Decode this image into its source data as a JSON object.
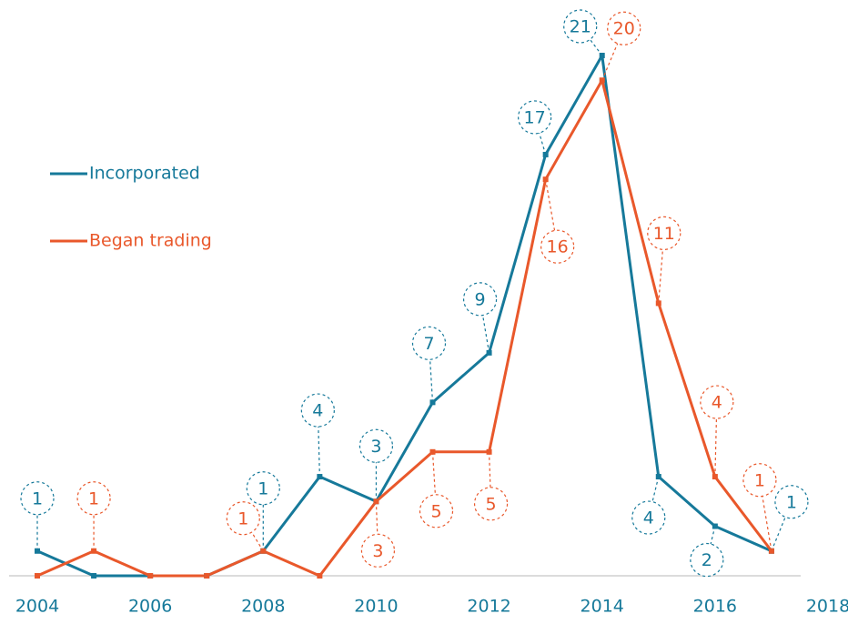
{
  "chart_data": {
    "type": "line",
    "x": [
      2004,
      2005,
      2006,
      2007,
      2008,
      2009,
      2010,
      2011,
      2012,
      2013,
      2014,
      2015,
      2016,
      2017
    ],
    "series": [
      {
        "name": "Incorporated",
        "color": "#16799a",
        "values": [
          1,
          0,
          0,
          0,
          1,
          4,
          3,
          7,
          9,
          17,
          21,
          4,
          2,
          1
        ]
      },
      {
        "name": "Began trading",
        "color": "#e9582b",
        "values": [
          0,
          1,
          0,
          0,
          1,
          0,
          3,
          5,
          5,
          16,
          20,
          11,
          4,
          1
        ]
      }
    ],
    "xlim": [
      2004,
      2018
    ],
    "xticks": [
      2004,
      2006,
      2008,
      2010,
      2012,
      2014,
      2016,
      2018
    ],
    "ylim": [
      0,
      21
    ],
    "legend": "left"
  }
}
